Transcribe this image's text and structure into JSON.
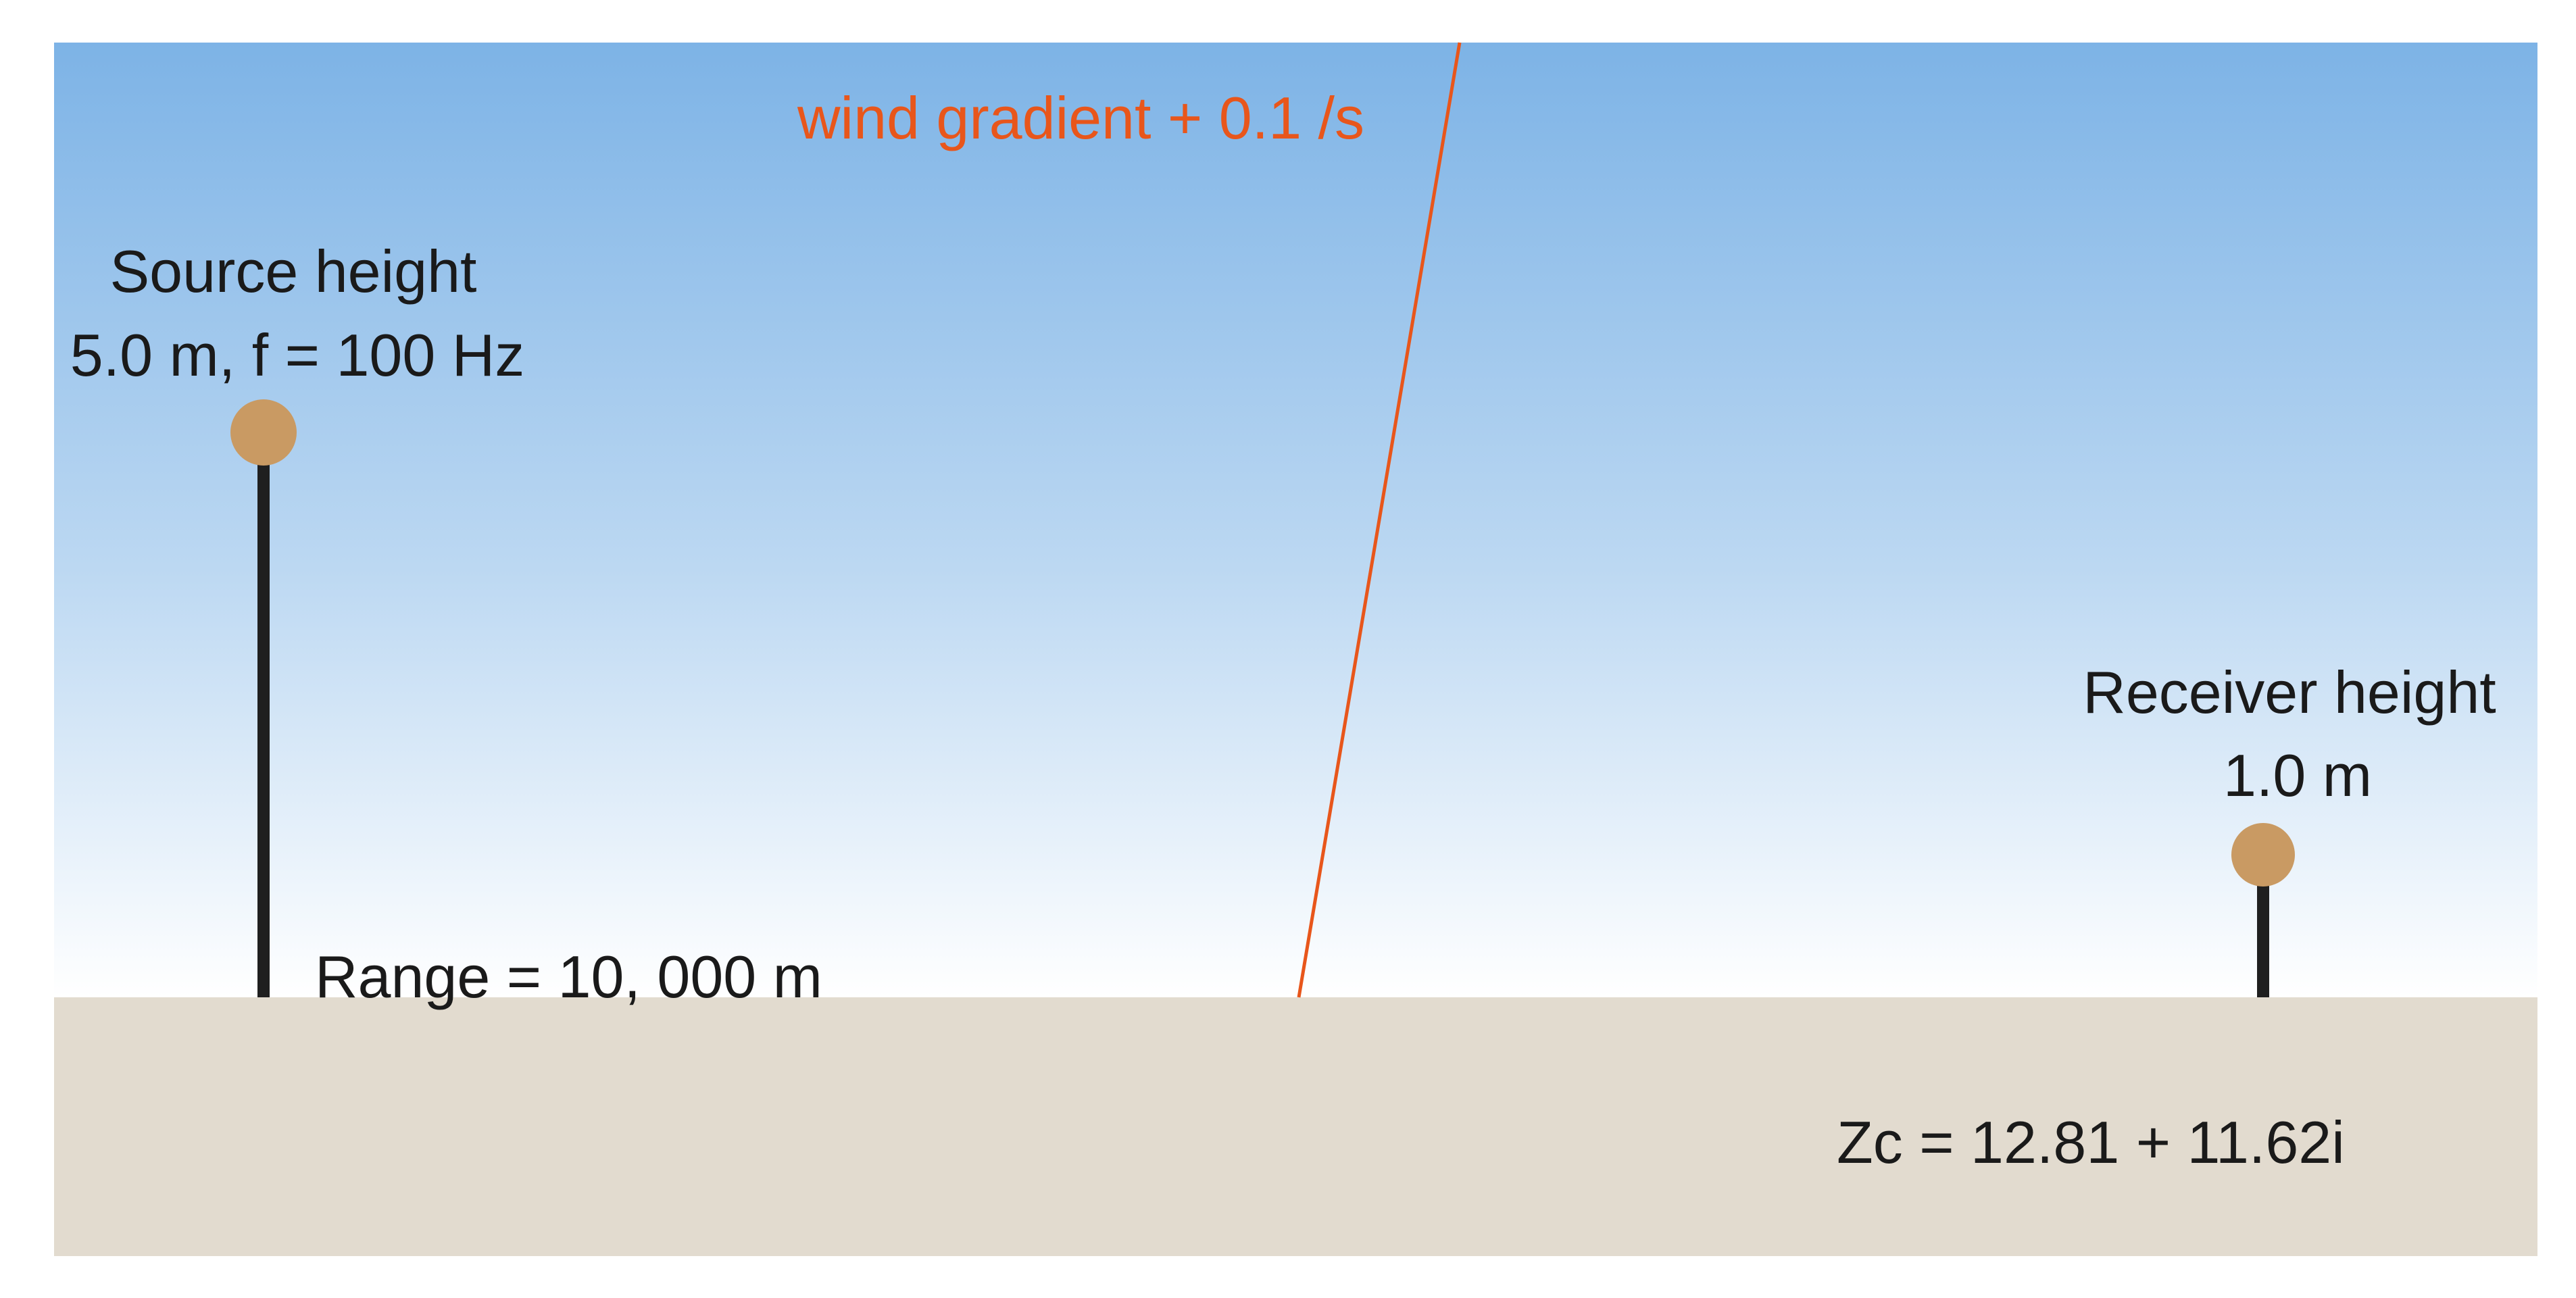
{
  "colors": {
    "sky_top": "#7db3e6",
    "sky_bottom": "#ffffff",
    "ground": "#e2dbcf",
    "mast": "#1f1f1f",
    "sensor": "#c99a63",
    "wind_line": "#e8561b",
    "text": "#1a1a1a"
  },
  "wind": {
    "label": "wind gradient + 0.1 /s"
  },
  "source": {
    "label_line1": "Source height",
    "label_line2": "5.0 m, f = 100 Hz"
  },
  "receiver": {
    "label_line1": "Receiver height",
    "label_line2": "1.0 m"
  },
  "range": {
    "label": "Range = 10, 000 m"
  },
  "ground": {
    "impedance_label": "Zc = 12.81 + 11.62i"
  }
}
